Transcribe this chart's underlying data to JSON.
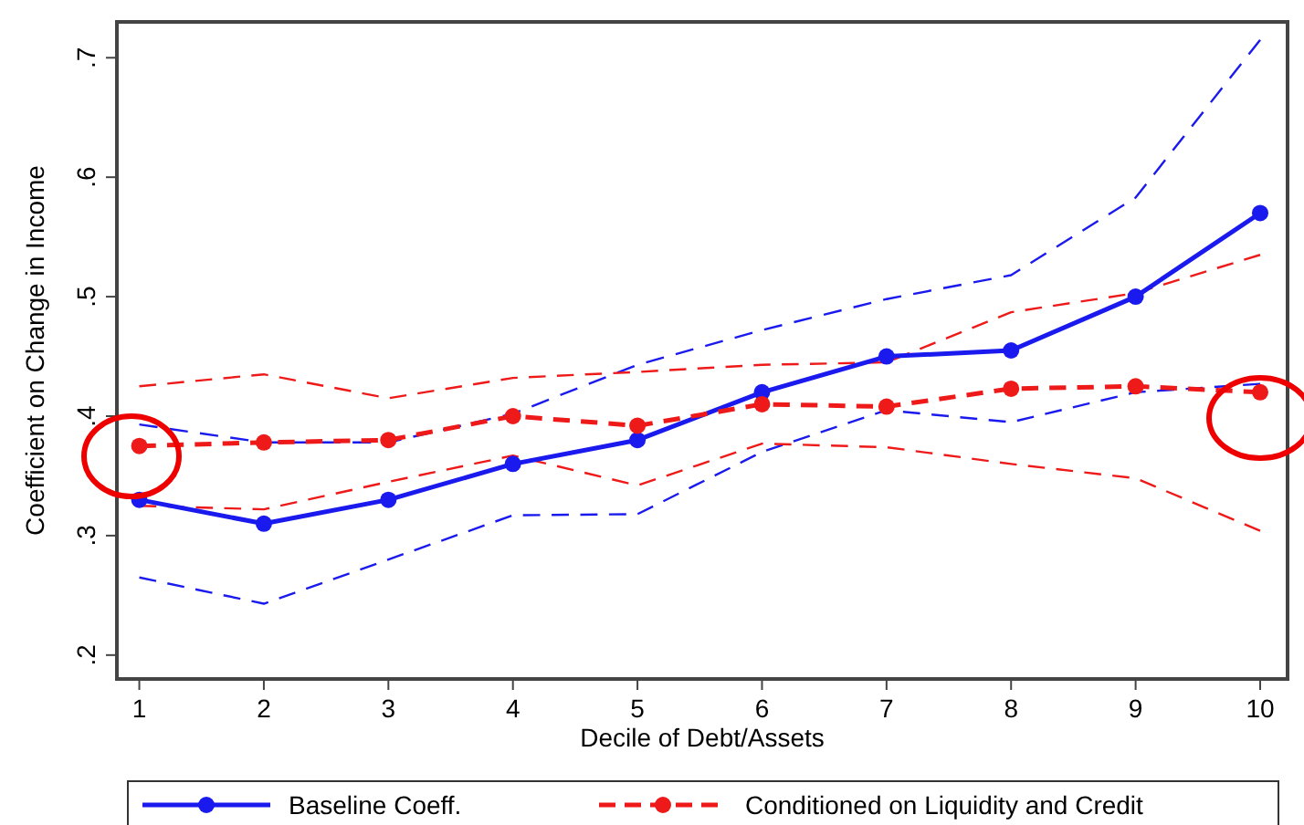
{
  "chart_data": {
    "type": "line",
    "xlabel": "Decile of Debt/Assets",
    "ylabel": "Coefficient on Change in Income",
    "x": [
      1,
      2,
      3,
      4,
      5,
      6,
      7,
      8,
      9,
      10
    ],
    "xlim": [
      0.82,
      10.22
    ],
    "xticks": [
      1,
      2,
      3,
      4,
      5,
      6,
      7,
      8,
      9,
      10
    ],
    "ylim": [
      0.18,
      0.73
    ],
    "yticks": [
      {
        "value": 0.2,
        "label": ".2"
      },
      {
        "value": 0.3,
        "label": ".3"
      },
      {
        "value": 0.4,
        "label": ".4"
      },
      {
        "value": 0.5,
        "label": ".5"
      },
      {
        "value": 0.6,
        "label": ".6"
      },
      {
        "value": 0.7,
        "label": ".7"
      }
    ],
    "grid": false,
    "legend": "bottom",
    "marker": "circle",
    "series": [
      {
        "color": "#1a1aee",
        "line_style": "dashed",
        "marker": "none",
        "values": [
          0.265,
          0.243,
          0.28,
          0.317,
          0.318,
          0.37,
          0.405,
          0.395,
          0.42,
          0.427
        ]
      },
      {
        "color": "#1a1aee",
        "line_style": "dashed",
        "marker": "none",
        "values": [
          0.393,
          0.378,
          0.378,
          0.402,
          0.443,
          0.472,
          0.498,
          0.518,
          0.583,
          0.715
        ]
      },
      {
        "color": "#ee1a1a",
        "line_style": "dashed",
        "marker": "none",
        "values": [
          0.325,
          0.322,
          0.345,
          0.367,
          0.342,
          0.377,
          0.374,
          0.36,
          0.348,
          0.304
        ]
      },
      {
        "color": "#ee1a1a",
        "line_style": "dashed",
        "marker": "none",
        "values": [
          0.425,
          0.435,
          0.415,
          0.432,
          0.437,
          0.443,
          0.445,
          0.487,
          0.503,
          0.535
        ]
      },
      {
        "name": "Baseline Coeff.",
        "color": "#1a1aee",
        "line_style": "solid",
        "values": [
          0.33,
          0.31,
          0.33,
          0.36,
          0.38,
          0.42,
          0.45,
          0.455,
          0.5,
          0.57
        ]
      },
      {
        "name": "Conditioned on Liquidity and Credit",
        "color": "#ee1a1a",
        "line_style": "dashed",
        "values": [
          0.375,
          0.378,
          0.38,
          0.4,
          0.392,
          0.41,
          0.408,
          0.423,
          0.425,
          0.42
        ]
      }
    ]
  }
}
